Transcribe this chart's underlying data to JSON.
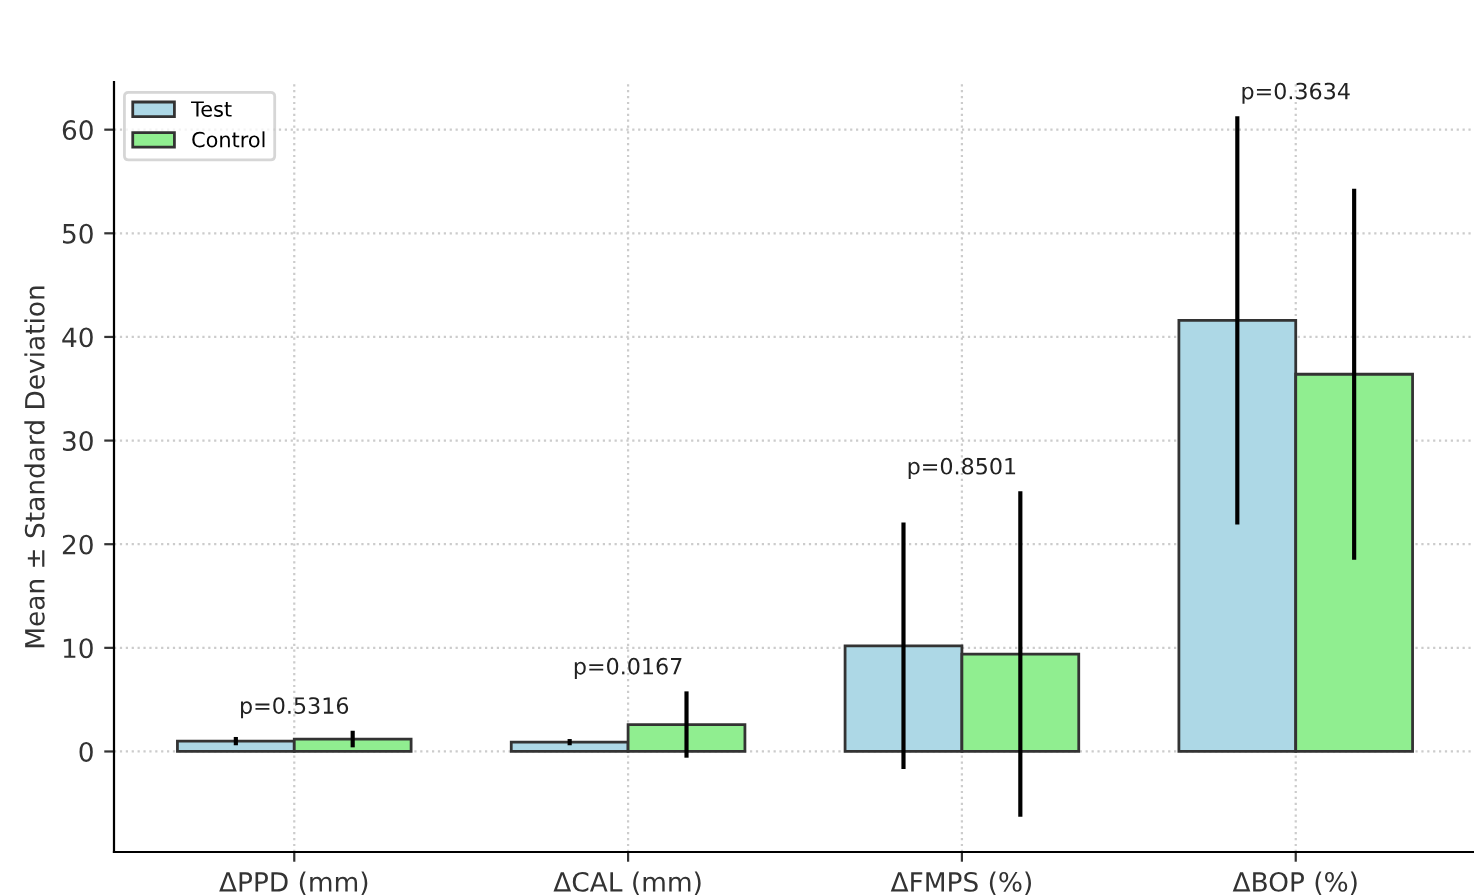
{
  "chart_data": {
    "type": "bar",
    "ylabel": "Mean ± Standard Deviation",
    "categories": [
      "ΔPPD (mm)",
      "ΔCAL (mm)",
      "ΔFMPS (%)",
      "ΔBOP (%)"
    ],
    "series": [
      {
        "name": "Test",
        "color": "#add8e6",
        "values": [
          1.0,
          0.9,
          10.2,
          41.6
        ],
        "errors": [
          0.4,
          0.3,
          11.9,
          19.7
        ]
      },
      {
        "name": "Control",
        "color": "#90ee90",
        "values": [
          1.2,
          2.6,
          9.4,
          36.4
        ],
        "errors": [
          0.8,
          3.2,
          15.7,
          17.9
        ]
      }
    ],
    "annotations": [
      "p=0.5316",
      "p=0.0167",
      "p=0.8501",
      "p=0.3634"
    ],
    "ylim": [
      -9.7,
      64.6
    ],
    "yticks": [
      0,
      10,
      20,
      30,
      40,
      50,
      60
    ],
    "grid": true,
    "legend": "top left"
  }
}
